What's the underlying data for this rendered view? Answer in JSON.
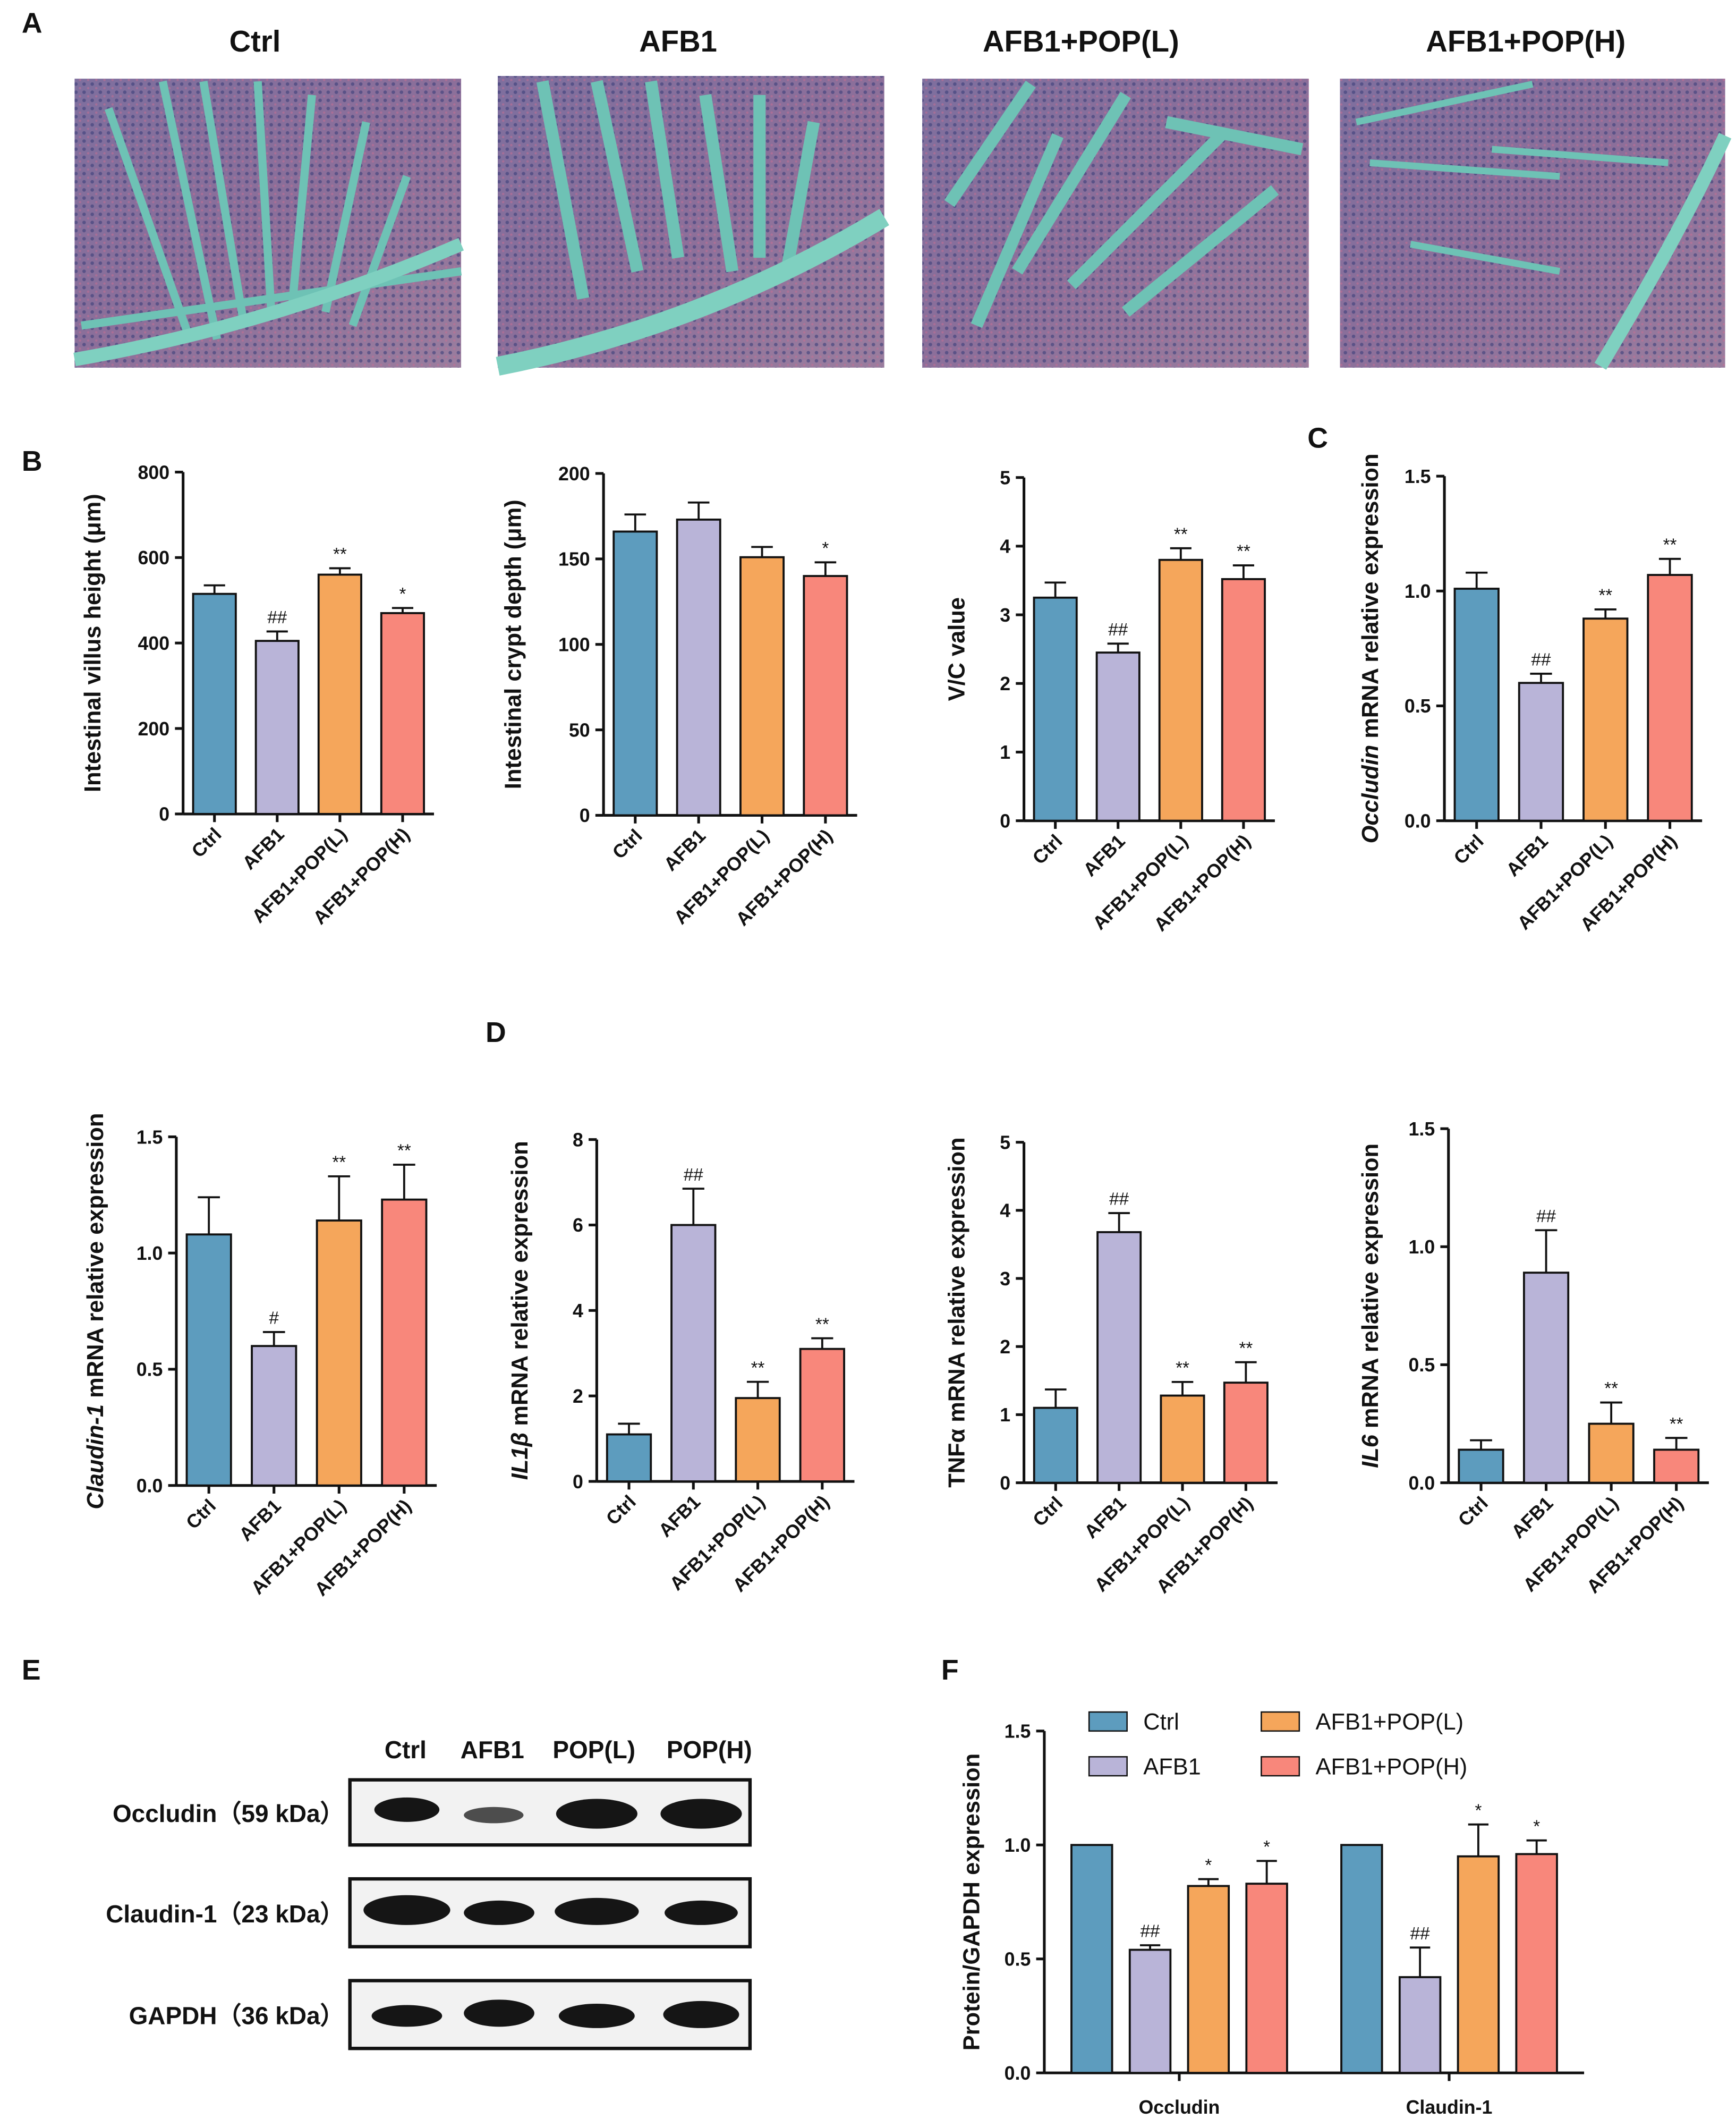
{
  "panel_labels": [
    "A",
    "B",
    "C",
    "D",
    "E",
    "F"
  ],
  "histology": {
    "titles": [
      "Ctrl",
      "AFB1",
      "AFB1+POP(L)",
      "AFB1+POP(H)"
    ]
  },
  "western_blot": {
    "lanes": [
      "Ctrl",
      "AFB1",
      "POP(L)",
      "POP(H)"
    ],
    "rows": [
      "Occludin（59 kDa）",
      "Claudin-1（23 kDa）",
      "GAPDH（36 kDa）"
    ]
  },
  "chart_data": [
    {
      "type": "bar",
      "ylabel": [
        {
          "text": "Intestinal villus height (μm)",
          "italic": false
        }
      ],
      "categories": [
        "Ctrl",
        "AFB1",
        "AFB1+POP(L)",
        "AFB1+POP(H)"
      ],
      "values": [
        515,
        405,
        560,
        470
      ],
      "errors": [
        20,
        22,
        15,
        12
      ],
      "annotations": [
        null,
        "##",
        "**",
        "*"
      ],
      "colors": [
        "#5d9cbe",
        "#b9b4d8",
        "#f5a65b",
        "#f8877b"
      ],
      "ylim": [
        0,
        800
      ],
      "yticks": [
        0,
        200,
        400,
        600,
        800
      ]
    },
    {
      "type": "bar",
      "ylabel": [
        {
          "text": "Intestinal crypt depth (μm)",
          "italic": false
        }
      ],
      "categories": [
        "Ctrl",
        "AFB1",
        "AFB1+POP(L)",
        "AFB1+POP(H)"
      ],
      "values": [
        166,
        173,
        151,
        140
      ],
      "errors": [
        10,
        10,
        6,
        8
      ],
      "annotations": [
        null,
        null,
        null,
        "*"
      ],
      "colors": [
        "#5d9cbe",
        "#b9b4d8",
        "#f5a65b",
        "#f8877b"
      ],
      "ylim": [
        0,
        200
      ],
      "yticks": [
        0,
        50,
        100,
        150,
        200
      ]
    },
    {
      "type": "bar",
      "ylabel": [
        {
          "text": "V/C value",
          "italic": false
        }
      ],
      "categories": [
        "Ctrl",
        "AFB1",
        "AFB1+POP(L)",
        "AFB1+POP(H)"
      ],
      "values": [
        3.25,
        2.45,
        3.8,
        3.52
      ],
      "errors": [
        0.22,
        0.13,
        0.17,
        0.2
      ],
      "annotations": [
        null,
        "##",
        "**",
        "**"
      ],
      "colors": [
        "#5d9cbe",
        "#b9b4d8",
        "#f5a65b",
        "#f8877b"
      ],
      "ylim": [
        0,
        5
      ],
      "yticks": [
        0,
        1,
        2,
        3,
        4,
        5
      ]
    },
    {
      "type": "bar",
      "ylabel": [
        {
          "text": "Occludin",
          "italic": true
        },
        {
          "text": " mRNA relative expression",
          "italic": false
        }
      ],
      "categories": [
        "Ctrl",
        "AFB1",
        "AFB1+POP(L)",
        "AFB1+POP(H)"
      ],
      "values": [
        1.01,
        0.6,
        0.88,
        1.07
      ],
      "errors": [
        0.07,
        0.04,
        0.04,
        0.07
      ],
      "annotations": [
        null,
        "##",
        "**",
        "**"
      ],
      "colors": [
        "#5d9cbe",
        "#b9b4d8",
        "#f5a65b",
        "#f8877b"
      ],
      "ylim": [
        0,
        1.5
      ],
      "yticks": [
        {
          "value": 0,
          "label": "0.0"
        },
        0.5,
        {
          "value": 1,
          "label": "1.0"
        },
        1.5
      ]
    },
    {
      "type": "bar",
      "ylabel": [
        {
          "text": "Claudin-1",
          "italic": true
        },
        {
          "text": " mRNA relative expression",
          "italic": false
        }
      ],
      "categories": [
        "Ctrl",
        "AFB1",
        "AFB1+POP(L)",
        "AFB1+POP(H)"
      ],
      "values": [
        1.08,
        0.6,
        1.14,
        1.23
      ],
      "errors": [
        0.16,
        0.06,
        0.19,
        0.15
      ],
      "annotations": [
        null,
        "#",
        "**",
        "**"
      ],
      "colors": [
        "#5d9cbe",
        "#b9b4d8",
        "#f5a65b",
        "#f8877b"
      ],
      "ylim": [
        0,
        1.5
      ],
      "yticks": [
        {
          "value": 0,
          "label": "0.0"
        },
        0.5,
        {
          "value": 1,
          "label": "1.0"
        },
        1.5
      ]
    },
    {
      "type": "bar",
      "ylabel": [
        {
          "text": "IL1β",
          "italic": true
        },
        {
          "text": "  mRNA relative expression",
          "italic": false
        }
      ],
      "categories": [
        "Ctrl",
        "AFB1",
        "AFB1+POP(L)",
        "AFB1+POP(H)"
      ],
      "values": [
        1.1,
        6.0,
        1.95,
        3.1
      ],
      "errors": [
        0.25,
        0.85,
        0.38,
        0.25
      ],
      "annotations": [
        null,
        "##",
        "**",
        "**"
      ],
      "colors": [
        "#5d9cbe",
        "#b9b4d8",
        "#f5a65b",
        "#f8877b"
      ],
      "ylim": [
        0,
        8
      ],
      "yticks": [
        0,
        2,
        4,
        6,
        8
      ]
    },
    {
      "type": "bar",
      "ylabel": [
        {
          "text": "TNFα mRNA relative expression",
          "italic": false
        }
      ],
      "categories": [
        "Ctrl",
        "AFB1",
        "AFB1+POP(L)",
        "AFB1+POP(H)"
      ],
      "values": [
        1.1,
        3.68,
        1.28,
        1.47
      ],
      "errors": [
        0.27,
        0.28,
        0.2,
        0.3
      ],
      "annotations": [
        null,
        "##",
        "**",
        "**"
      ],
      "colors": [
        "#5d9cbe",
        "#b9b4d8",
        "#f5a65b",
        "#f8877b"
      ],
      "ylim": [
        0,
        5
      ],
      "yticks": [
        0,
        1,
        2,
        3,
        4,
        5
      ]
    },
    {
      "type": "bar",
      "ylabel": [
        {
          "text": "IL6",
          "italic": true
        },
        {
          "text": " mRNA relative expression",
          "italic": false
        }
      ],
      "categories": [
        "Ctrl",
        "AFB1",
        "AFB1+POP(L)",
        "AFB1+POP(H)"
      ],
      "values": [
        0.14,
        0.89,
        0.25,
        0.14
      ],
      "errors": [
        0.04,
        0.18,
        0.09,
        0.05
      ],
      "annotations": [
        null,
        "##",
        "**",
        "**"
      ],
      "colors": [
        "#5d9cbe",
        "#b9b4d8",
        "#f5a65b",
        "#f8877b"
      ],
      "ylim": [
        0,
        1.5
      ],
      "yticks": [
        {
          "value": 0,
          "label": "0.0"
        },
        0.5,
        {
          "value": 1,
          "label": "1.0"
        },
        1.5
      ]
    },
    {
      "type": "grouped_bar",
      "ylabel": [
        {
          "text": "Protein/GAPDH expression",
          "italic": false
        }
      ],
      "categories": [
        "Occludin",
        "Claudin-1"
      ],
      "legend": "top",
      "series": [
        {
          "name": "Ctrl",
          "color": "#5d9cbe",
          "values": [
            1.0,
            1.0
          ],
          "errors": [
            0,
            0
          ],
          "annotations": [
            null,
            null
          ]
        },
        {
          "name": "AFB1",
          "color": "#b9b4d8",
          "values": [
            0.54,
            0.42
          ],
          "errors": [
            0.02,
            0.13
          ],
          "annotations": [
            "##",
            "##"
          ]
        },
        {
          "name": "AFB1+POP(L)",
          "color": "#f5a65b",
          "values": [
            0.82,
            0.95
          ],
          "errors": [
            0.03,
            0.14
          ],
          "annotations": [
            "*",
            "*"
          ]
        },
        {
          "name": "AFB1+POP(H)",
          "color": "#f8877b",
          "values": [
            0.83,
            0.96
          ],
          "errors": [
            0.1,
            0.06
          ],
          "annotations": [
            "*",
            "*"
          ]
        }
      ],
      "ylim": [
        0,
        1.5
      ],
      "yticks": [
        {
          "value": 0,
          "label": "0.0"
        },
        0.5,
        {
          "value": 1,
          "label": "1.0"
        },
        1.5
      ]
    }
  ]
}
